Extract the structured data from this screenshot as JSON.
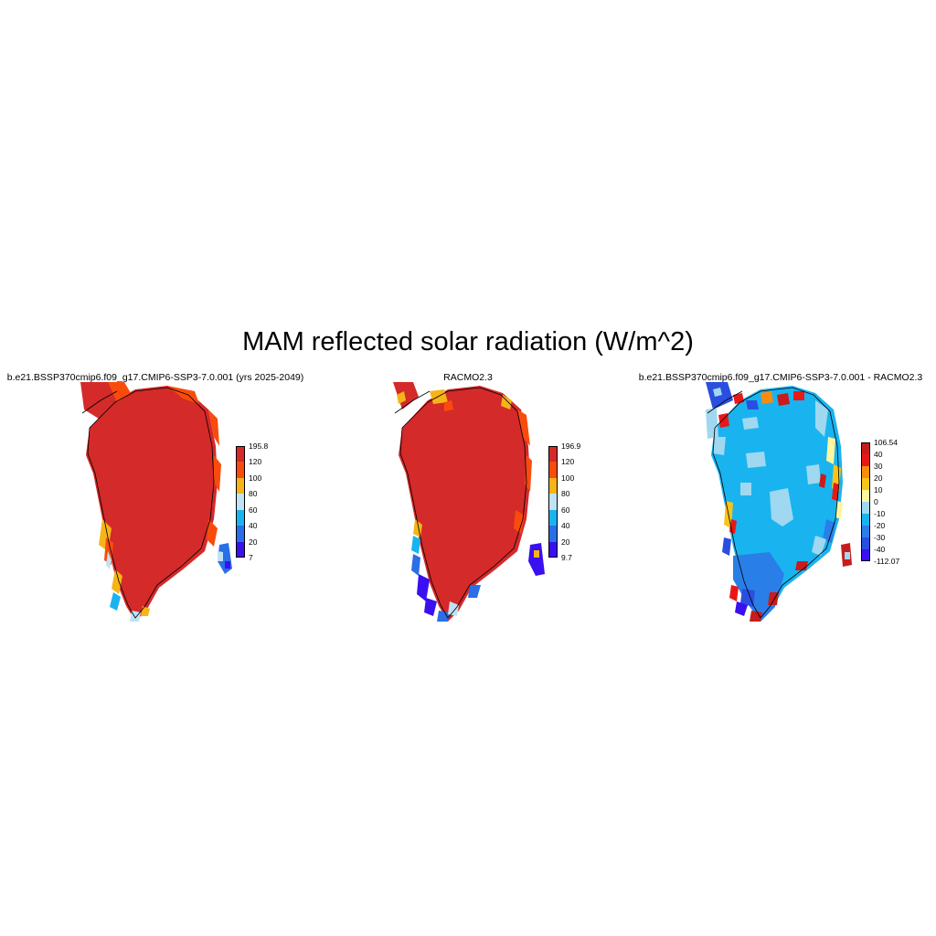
{
  "title": "MAM reflected solar radiation (W/m^2)",
  "panels": [
    {
      "title": "b.e21.BSSP370cmip6.f09_g17.CMIP6-SSP3-7.0.001 (yrs 2025-2049)",
      "colorbar": {
        "colors": [
          "#3a0ff0",
          "#2a6ee8",
          "#19b4f0",
          "#bfe3f5",
          "#f7b418",
          "#f94c0c",
          "#d42a2a"
        ],
        "labels": [
          "7",
          "20",
          "40",
          "60",
          "80",
          "100",
          "120",
          "195.8"
        ]
      }
    },
    {
      "title": "RACMO2.3",
      "colorbar": {
        "colors": [
          "#3a0ff0",
          "#2a6ee8",
          "#19b4f0",
          "#bfe3f5",
          "#f7b418",
          "#f94c0c",
          "#d42a2a"
        ],
        "labels": [
          "9.7",
          "20",
          "40",
          "60",
          "80",
          "100",
          "120",
          "196.9"
        ]
      }
    },
    {
      "title": "b.e21.BSSP370cmip6.f09_g17.CMIP6-SSP3-7.0.001 - RACMO2.3",
      "colorbar": {
        "colors": [
          "#3a0ff0",
          "#2a4fe0",
          "#2a7ee8",
          "#19b4f0",
          "#9fd8f0",
          "#fff6a0",
          "#f7c418",
          "#f98c0c",
          "#e81818",
          "#c81c1c"
        ],
        "labels": [
          "-112.07",
          "-40",
          "-30",
          "-20",
          "-10",
          "0",
          "10",
          "20",
          "30",
          "40",
          "106.54"
        ]
      }
    }
  ],
  "colors": {
    "red": "#d42a2a",
    "orange": "#f94c0c",
    "yellow": "#f7b418",
    "light_blue": "#bfe3f5",
    "cyan": "#19b4f0",
    "mid_blue": "#2a6ee8",
    "violet": "#3a0ff0"
  }
}
